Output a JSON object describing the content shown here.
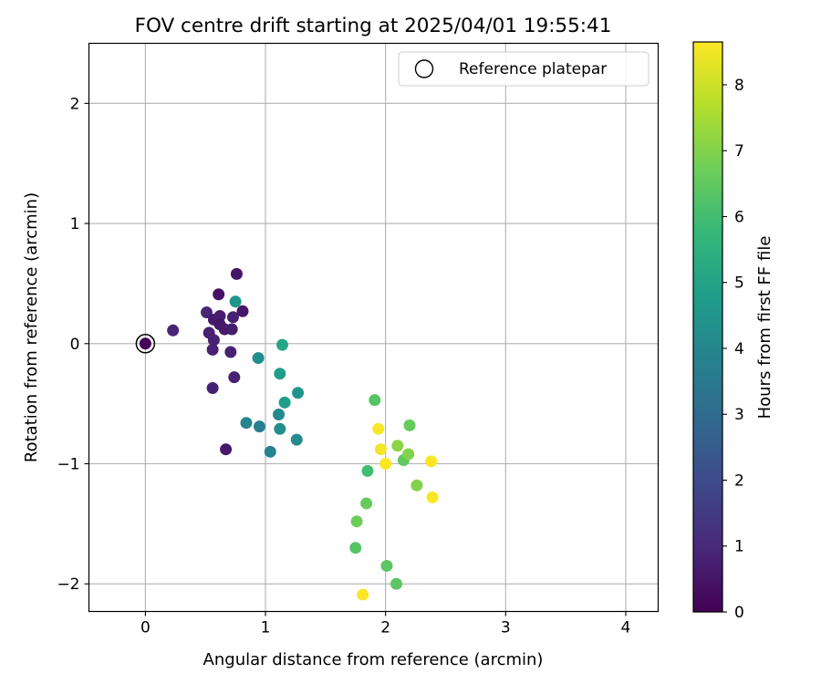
{
  "chart_data": {
    "type": "scatter",
    "title": "FOV centre drift starting at 2025/04/01 19:55:41",
    "xlabel": "Angular distance from reference (arcmin)",
    "ylabel": "Rotation from reference (arcmin)",
    "xlim": [
      -0.47,
      4.27
    ],
    "ylim": [
      -2.23,
      2.5
    ],
    "xticks": [
      0,
      1,
      2,
      3,
      4
    ],
    "xtick_labels": [
      "0",
      "1",
      "2",
      "3",
      "4"
    ],
    "yticks": [
      -2,
      -1,
      0,
      1,
      2
    ],
    "ytick_labels": [
      "−2",
      "−1",
      "0",
      "1",
      "2"
    ],
    "grid": true,
    "legend": {
      "placement": "upper-right",
      "entries": [
        "Reference platepar"
      ]
    },
    "reference_point": {
      "name": "Reference platepar",
      "x": 0,
      "y": 0
    },
    "colorbar": {
      "label": "Hours from first FF file",
      "colormap": "viridis",
      "range": [
        0,
        8.65
      ],
      "ticks": [
        0,
        1,
        2,
        3,
        4,
        5,
        6,
        7,
        8
      ],
      "tick_labels": [
        "0",
        "1",
        "2",
        "3",
        "4",
        "5",
        "6",
        "7",
        "8"
      ],
      "stops": [
        "#440154",
        "#482878",
        "#3e4989",
        "#31688e",
        "#26828e",
        "#1f9e89",
        "#35b779",
        "#6ece58",
        "#b5de2b",
        "#fde725"
      ]
    },
    "points": [
      {
        "x": 0.0,
        "y": 0.0,
        "t": 0.05
      },
      {
        "x": 0.23,
        "y": 0.11,
        "t": 0.9
      },
      {
        "x": 0.51,
        "y": 0.26,
        "t": 0.9
      },
      {
        "x": 0.53,
        "y": 0.09,
        "t": 0.8
      },
      {
        "x": 0.57,
        "y": 0.2,
        "t": 0.6
      },
      {
        "x": 0.57,
        "y": 0.03,
        "t": 0.8
      },
      {
        "x": 0.56,
        "y": -0.05,
        "t": 0.8
      },
      {
        "x": 0.56,
        "y": -0.37,
        "t": 0.8
      },
      {
        "x": 0.61,
        "y": 0.41,
        "t": 0.4
      },
      {
        "x": 0.62,
        "y": 0.23,
        "t": 0.7
      },
      {
        "x": 0.62,
        "y": 0.16,
        "t": 0.5
      },
      {
        "x": 0.66,
        "y": 0.12,
        "t": 0.6
      },
      {
        "x": 0.72,
        "y": 0.12,
        "t": 0.7
      },
      {
        "x": 0.73,
        "y": 0.22,
        "t": 0.8
      },
      {
        "x": 0.71,
        "y": -0.07,
        "t": 0.8
      },
      {
        "x": 0.74,
        "y": -0.28,
        "t": 0.8
      },
      {
        "x": 0.67,
        "y": -0.88,
        "t": 0.6
      },
      {
        "x": 0.76,
        "y": 0.58,
        "t": 0.5
      },
      {
        "x": 0.75,
        "y": 0.35,
        "t": 4.5
      },
      {
        "x": 0.81,
        "y": 0.27,
        "t": 0.5
      },
      {
        "x": 0.84,
        "y": -0.66,
        "t": 3.9
      },
      {
        "x": 0.94,
        "y": -0.12,
        "t": 4.2
      },
      {
        "x": 0.95,
        "y": -0.69,
        "t": 3.7
      },
      {
        "x": 1.04,
        "y": -0.9,
        "t": 3.9
      },
      {
        "x": 1.12,
        "y": -0.25,
        "t": 4.8
      },
      {
        "x": 1.14,
        "y": -0.01,
        "t": 5.1
      },
      {
        "x": 1.11,
        "y": -0.59,
        "t": 4.1
      },
      {
        "x": 1.12,
        "y": -0.71,
        "t": 4.3
      },
      {
        "x": 1.16,
        "y": -0.49,
        "t": 4.8
      },
      {
        "x": 1.27,
        "y": -0.41,
        "t": 4.5
      },
      {
        "x": 1.26,
        "y": -0.8,
        "t": 4.2
      },
      {
        "x": 1.91,
        "y": -0.47,
        "t": 6.3
      },
      {
        "x": 1.94,
        "y": -0.71,
        "t": 8.6
      },
      {
        "x": 1.96,
        "y": -0.88,
        "t": 8.5
      },
      {
        "x": 2.0,
        "y": -1.0,
        "t": 8.6
      },
      {
        "x": 1.85,
        "y": -1.06,
        "t": 6.0
      },
      {
        "x": 2.1,
        "y": -0.85,
        "t": 7.1
      },
      {
        "x": 2.15,
        "y": -0.97,
        "t": 6.5
      },
      {
        "x": 2.19,
        "y": -0.92,
        "t": 7.0
      },
      {
        "x": 2.2,
        "y": -0.68,
        "t": 6.6
      },
      {
        "x": 2.26,
        "y": -1.18,
        "t": 7.0
      },
      {
        "x": 2.38,
        "y": -0.98,
        "t": 8.6
      },
      {
        "x": 2.39,
        "y": -1.28,
        "t": 8.6
      },
      {
        "x": 1.84,
        "y": -1.33,
        "t": 6.6
      },
      {
        "x": 1.76,
        "y": -1.48,
        "t": 6.7
      },
      {
        "x": 1.75,
        "y": -1.7,
        "t": 6.3
      },
      {
        "x": 2.01,
        "y": -1.85,
        "t": 6.4
      },
      {
        "x": 2.09,
        "y": -2.0,
        "t": 6.4
      },
      {
        "x": 1.81,
        "y": -2.09,
        "t": 8.6
      }
    ]
  }
}
